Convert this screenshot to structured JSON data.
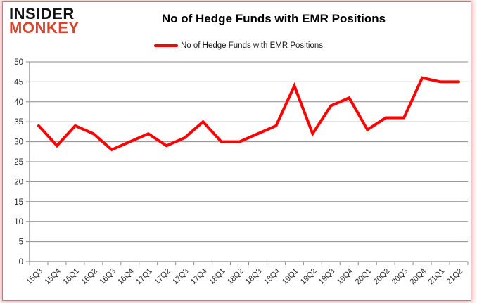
{
  "logo": {
    "line1": "INSIDER",
    "line2": "MONKEY"
  },
  "header": {
    "title": "No of Hedge Funds with EMR Positions"
  },
  "legend": {
    "label": "No of Hedge Funds with EMR Positions"
  },
  "colors": {
    "line": "#ff0000",
    "grid": "#8c8c8c",
    "axis": "#8c8c8c",
    "tick_text": "#262626",
    "logo_accent": "#d9432b",
    "frame_glow": "#f08080"
  },
  "chart_data": {
    "type": "line",
    "title": "No of Hedge Funds with EMR Positions",
    "categories": [
      "15Q3",
      "15Q4",
      "16Q1",
      "16Q2",
      "16Q3",
      "16Q4",
      "17Q1",
      "17Q2",
      "17Q3",
      "17Q4",
      "18Q1",
      "18Q2",
      "18Q3",
      "18Q4",
      "19Q1",
      "19Q2",
      "19Q3",
      "19Q4",
      "20Q1",
      "20Q2",
      "20Q3",
      "20Q4",
      "21Q1",
      "21Q2"
    ],
    "series": [
      {
        "name": "No of Hedge Funds with EMR Positions",
        "color": "#ff0000",
        "values": [
          34,
          29,
          34,
          32,
          28,
          30,
          32,
          29,
          31,
          35,
          30,
          30,
          32,
          34,
          44,
          32,
          39,
          41,
          33,
          36,
          36,
          46,
          45,
          45
        ]
      }
    ],
    "xlabel": "",
    "ylabel": "",
    "ylim": [
      0,
      50
    ],
    "yticks": [
      0,
      5,
      10,
      15,
      20,
      25,
      30,
      35,
      40,
      45,
      50
    ],
    "grid": true,
    "legend_position": "top-center"
  }
}
